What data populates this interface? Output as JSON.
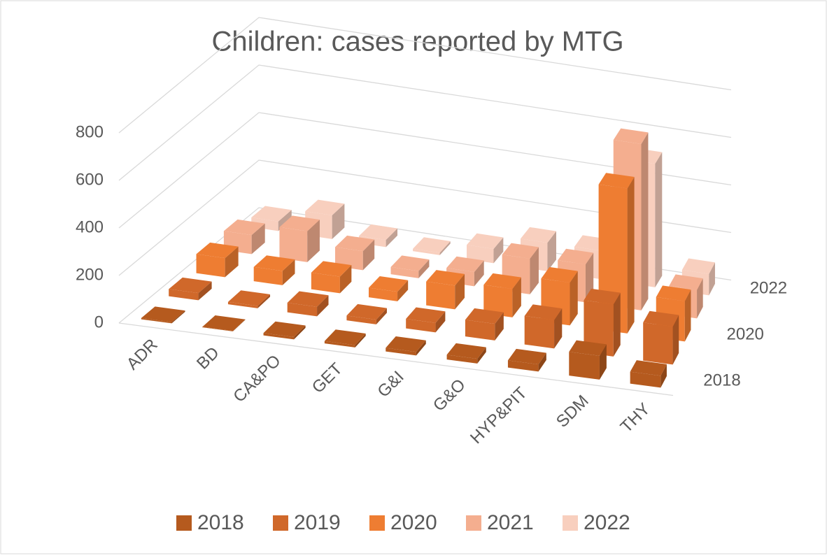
{
  "chart_data": {
    "type": "bar3d",
    "title": "Children: cases reported by MTG",
    "categories": [
      "ADR",
      "BD",
      "CA&PO",
      "GET",
      "G&I",
      "G&O",
      "HYP&PIT",
      "SDM",
      "THY"
    ],
    "series": [
      {
        "name": "2018",
        "color": "#b55a1e",
        "values": [
          5,
          2,
          10,
          10,
          15,
          20,
          30,
          100,
          50
        ]
      },
      {
        "name": "2019",
        "color": "#d0682a",
        "values": [
          30,
          10,
          40,
          20,
          40,
          70,
          120,
          220,
          160
        ]
      },
      {
        "name": "2020",
        "color": "#ee7d32",
        "values": [
          80,
          60,
          70,
          40,
          100,
          120,
          180,
          610,
          170
        ]
      },
      {
        "name": "2021",
        "color": "#f4ae8f",
        "values": [
          80,
          130,
          80,
          30,
          60,
          150,
          160,
          700,
          120
        ]
      },
      {
        "name": "2022",
        "color": "#f8cfbe",
        "values": [
          40,
          100,
          30,
          10,
          60,
          120,
          120,
          520,
          90
        ]
      }
    ],
    "depth_labels": [
      0,
      2,
      4
    ],
    "ylim": [
      0,
      800
    ],
    "yticks": [
      0,
      200,
      400,
      600,
      800
    ],
    "grid": true,
    "legend": "bottom"
  }
}
